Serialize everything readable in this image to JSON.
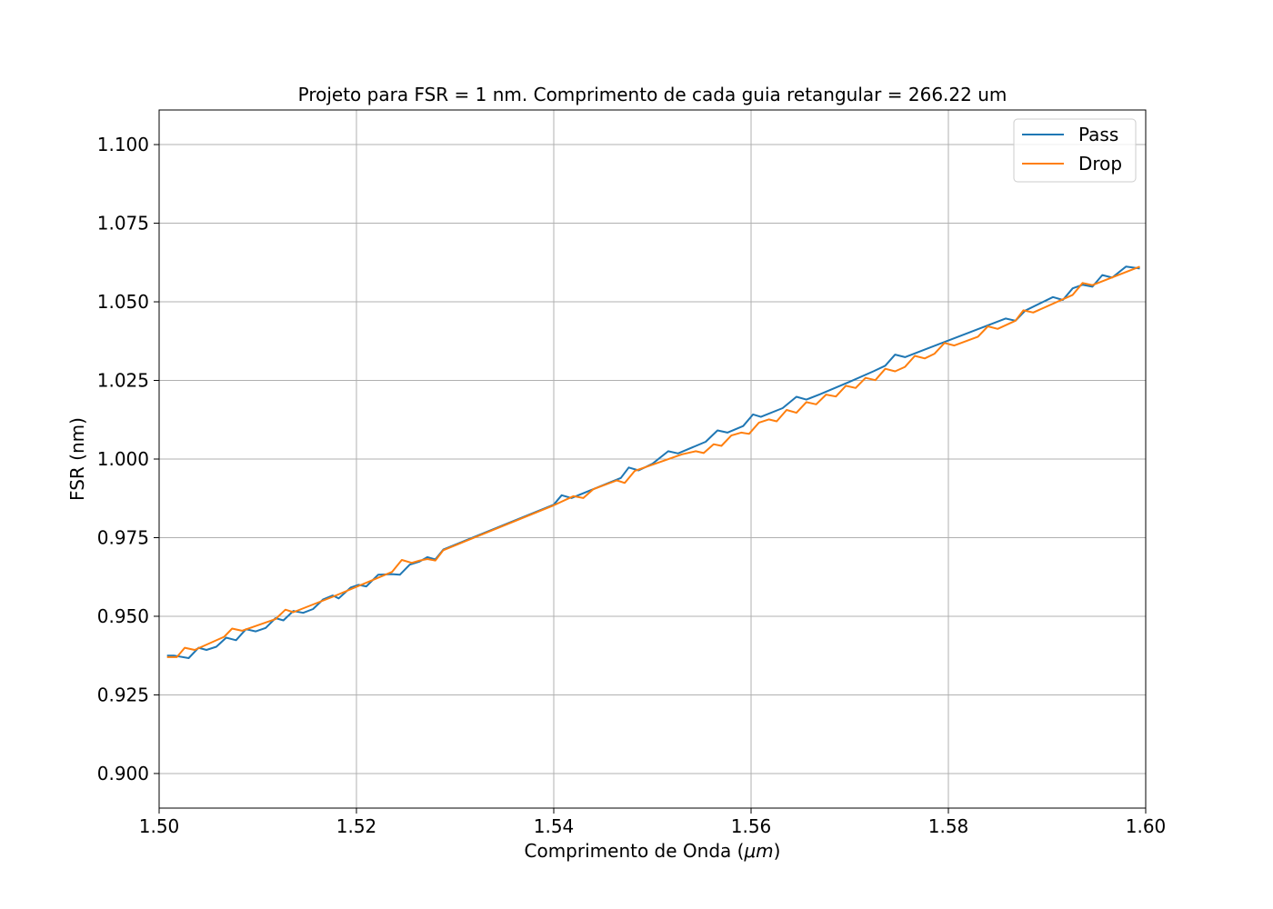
{
  "chart_data": {
    "type": "line",
    "title": "Projeto para FSR = 1 nm. Comprimento de cada guia retangular = 266.22 um",
    "xlabel_prefix": "Comprimento de Onda (",
    "xlabel_unit": "μm",
    "xlabel_suffix": ")",
    "ylabel": "FSR (nm)",
    "xlim": [
      1.5,
      1.6
    ],
    "ylim": [
      0.889,
      1.111
    ],
    "xticks": [
      1.5,
      1.52,
      1.54,
      1.56,
      1.58,
      1.6
    ],
    "xtick_labels": [
      "1.50",
      "1.52",
      "1.54",
      "1.56",
      "1.58",
      "1.60"
    ],
    "yticks": [
      0.9,
      0.925,
      0.95,
      0.975,
      1.0,
      1.025,
      1.05,
      1.075,
      1.1
    ],
    "ytick_labels": [
      "0.900",
      "0.925",
      "0.950",
      "0.975",
      "1.000",
      "1.025",
      "1.050",
      "1.075",
      "1.100"
    ],
    "grid": true,
    "legend_position": "top-right",
    "series": [
      {
        "name": "Pass",
        "color": "#1f77b4",
        "points": [
          [
            1.5008,
            0.9375
          ],
          [
            1.5015,
            0.9375
          ],
          [
            1.503,
            0.9367
          ],
          [
            1.504,
            0.94
          ],
          [
            1.5048,
            0.9393
          ],
          [
            1.5058,
            0.9403
          ],
          [
            1.5068,
            0.9432
          ],
          [
            1.5078,
            0.9424
          ],
          [
            1.5088,
            0.9459
          ],
          [
            1.5098,
            0.9452
          ],
          [
            1.5108,
            0.9463
          ],
          [
            1.5118,
            0.9494
          ],
          [
            1.5126,
            0.9487
          ],
          [
            1.5136,
            0.9517
          ],
          [
            1.5146,
            0.9511
          ],
          [
            1.5156,
            0.9523
          ],
          [
            1.5166,
            0.9553
          ],
          [
            1.5176,
            0.9566
          ],
          [
            1.5182,
            0.9557
          ],
          [
            1.5194,
            0.9591
          ],
          [
            1.5202,
            0.96
          ],
          [
            1.521,
            0.9595
          ],
          [
            1.5222,
            0.9632
          ],
          [
            1.5236,
            0.9634
          ],
          [
            1.5244,
            0.9632
          ],
          [
            1.5254,
            0.9664
          ],
          [
            1.5264,
            0.9674
          ],
          [
            1.5272,
            0.9688
          ],
          [
            1.528,
            0.9681
          ],
          [
            1.5288,
            0.9712
          ],
          [
            1.54,
            0.9855
          ],
          [
            1.5408,
            0.9885
          ],
          [
            1.5418,
            0.9876
          ],
          [
            1.5468,
            0.994
          ],
          [
            1.5476,
            0.9973
          ],
          [
            1.5486,
            0.9964
          ],
          [
            1.55,
            0.9985
          ],
          [
            1.5516,
            1.0025
          ],
          [
            1.5526,
            1.0018
          ],
          [
            1.5554,
            1.0055
          ],
          [
            1.5566,
            1.0091
          ],
          [
            1.5576,
            1.0084
          ],
          [
            1.5592,
            1.0105
          ],
          [
            1.5602,
            1.0142
          ],
          [
            1.561,
            1.0134
          ],
          [
            1.5632,
            1.0162
          ],
          [
            1.5646,
            1.0198
          ],
          [
            1.5656,
            1.0189
          ],
          [
            1.567,
            1.0206
          ],
          [
            1.57,
            1.0246
          ],
          [
            1.5724,
            1.0279
          ],
          [
            1.5736,
            1.0297
          ],
          [
            1.5746,
            1.0332
          ],
          [
            1.5756,
            1.0324
          ],
          [
            1.5858,
            1.0447
          ],
          [
            1.5868,
            1.044
          ],
          [
            1.5878,
            1.0472
          ],
          [
            1.5906,
            1.0515
          ],
          [
            1.5916,
            1.0506
          ],
          [
            1.5926,
            1.0543
          ],
          [
            1.5936,
            1.0554
          ],
          [
            1.5946,
            1.0548
          ],
          [
            1.5956,
            1.0585
          ],
          [
            1.5966,
            1.0577
          ],
          [
            1.598,
            1.0612
          ],
          [
            1.5994,
            1.0606
          ]
        ]
      },
      {
        "name": "Drop",
        "color": "#ff7f0e",
        "points": [
          [
            1.5008,
            0.937
          ],
          [
            1.5018,
            0.937
          ],
          [
            1.5026,
            0.94
          ],
          [
            1.5036,
            0.9393
          ],
          [
            1.5066,
            0.9435
          ],
          [
            1.5074,
            0.9461
          ],
          [
            1.5084,
            0.9454
          ],
          [
            1.5118,
            0.9491
          ],
          [
            1.5128,
            0.9521
          ],
          [
            1.5136,
            0.9513
          ],
          [
            1.5176,
            0.9562
          ],
          [
            1.5236,
            0.9641
          ],
          [
            1.5246,
            0.9679
          ],
          [
            1.5256,
            0.967
          ],
          [
            1.5264,
            0.9677
          ],
          [
            1.5272,
            0.9682
          ],
          [
            1.528,
            0.9677
          ],
          [
            1.5288,
            0.971
          ],
          [
            1.54,
            0.9853
          ],
          [
            1.542,
            0.9882
          ],
          [
            1.543,
            0.9876
          ],
          [
            1.544,
            0.9904
          ],
          [
            1.5464,
            0.9932
          ],
          [
            1.5472,
            0.9924
          ],
          [
            1.5482,
            0.9962
          ],
          [
            1.553,
            1.0015
          ],
          [
            1.5544,
            1.0025
          ],
          [
            1.5552,
            1.0019
          ],
          [
            1.5562,
            1.0047
          ],
          [
            1.557,
            1.0042
          ],
          [
            1.558,
            1.0075
          ],
          [
            1.559,
            1.0084
          ],
          [
            1.5598,
            1.008
          ],
          [
            1.5608,
            1.0116
          ],
          [
            1.5618,
            1.0126
          ],
          [
            1.5626,
            1.012
          ],
          [
            1.5636,
            1.0156
          ],
          [
            1.5646,
            1.0147
          ],
          [
            1.5656,
            1.0181
          ],
          [
            1.5666,
            1.0174
          ],
          [
            1.5676,
            1.0205
          ],
          [
            1.5686,
            1.0199
          ],
          [
            1.5696,
            1.0233
          ],
          [
            1.5706,
            1.0226
          ],
          [
            1.5716,
            1.0258
          ],
          [
            1.5726,
            1.0251
          ],
          [
            1.5736,
            1.0287
          ],
          [
            1.5746,
            1.0279
          ],
          [
            1.5756,
            1.0293
          ],
          [
            1.5766,
            1.0328
          ],
          [
            1.5776,
            1.032
          ],
          [
            1.5786,
            1.0335
          ],
          [
            1.5796,
            1.0369
          ],
          [
            1.5806,
            1.0361
          ],
          [
            1.583,
            1.0389
          ],
          [
            1.584,
            1.0422
          ],
          [
            1.585,
            1.0414
          ],
          [
            1.5868,
            1.044
          ],
          [
            1.5876,
            1.0473
          ],
          [
            1.5886,
            1.0466
          ],
          [
            1.5926,
            1.0522
          ],
          [
            1.5936,
            1.056
          ],
          [
            1.5946,
            1.0553
          ],
          [
            1.5994,
            1.0612
          ]
        ]
      }
    ]
  }
}
